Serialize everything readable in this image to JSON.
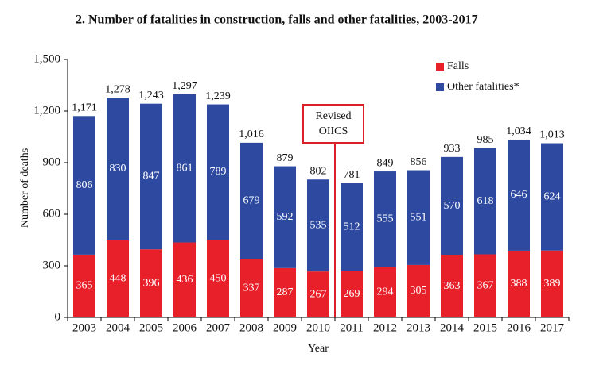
{
  "chart_data": {
    "type": "stacked_bar",
    "title": "2. Number of fatalities in construction, falls and other fatalities, 2003-2017",
    "x_label": "Year",
    "y_label": "Number of deaths",
    "categories": [
      "2003",
      "2004",
      "2005",
      "2006",
      "2007",
      "2008",
      "2009",
      "2010",
      "2011",
      "2012",
      "2013",
      "2014",
      "2015",
      "2016",
      "2017"
    ],
    "series": [
      {
        "name": "Falls",
        "color": "#e8202a",
        "values": [
          365,
          448,
          396,
          436,
          450,
          337,
          287,
          267,
          269,
          294,
          305,
          363,
          367,
          388,
          389
        ]
      },
      {
        "name": "Other fatalities*",
        "color": "#2e4aa0",
        "values": [
          806,
          830,
          847,
          861,
          789,
          679,
          592,
          535,
          512,
          555,
          551,
          570,
          618,
          646,
          624
        ]
      }
    ],
    "totals": [
      {
        "value": 1171,
        "label": "1,171"
      },
      {
        "value": 1278,
        "label": "1,278"
      },
      {
        "value": 1243,
        "label": "1,243"
      },
      {
        "value": 1297,
        "label": "1,297"
      },
      {
        "value": 1239,
        "label": "1,239"
      },
      {
        "value": 1016,
        "label": "1,016"
      },
      879,
      802,
      781,
      849,
      856,
      933,
      985,
      {
        "value": 1034,
        "label": "1,034"
      },
      {
        "value": 1013,
        "label": "1,013"
      }
    ],
    "annotation": [
      "Revised",
      "OIICS"
    ],
    "ylim": [
      0,
      1500
    ],
    "yticks": [
      0,
      300,
      600,
      900,
      {
        "value": 1200,
        "label": "1,200"
      },
      {
        "value": 1500,
        "label": "1,500"
      }
    ],
    "legend": "top-right"
  }
}
